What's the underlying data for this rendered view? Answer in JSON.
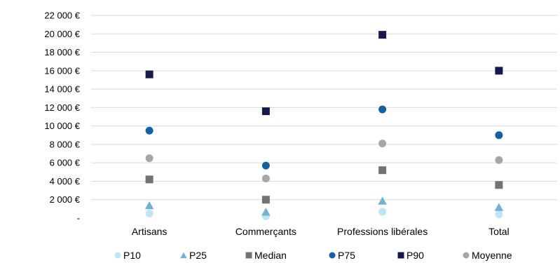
{
  "chart_data": {
    "type": "scatter",
    "categories": [
      "Artisans",
      "Commerçants",
      "Professions libérales",
      "Total"
    ],
    "series": [
      {
        "name": "P10",
        "marker": "circle",
        "color": "#bfe3f7",
        "values": [
          500,
          200,
          700,
          400
        ]
      },
      {
        "name": "P25",
        "marker": "triangle",
        "color": "#6fb3d6",
        "values": [
          1400,
          700,
          1900,
          1200
        ]
      },
      {
        "name": "Median",
        "marker": "square",
        "color": "#737373",
        "values": [
          4200,
          2000,
          5200,
          3600
        ]
      },
      {
        "name": "P75",
        "marker": "circle",
        "color": "#1061a8",
        "values": [
          9500,
          5700,
          11800,
          9000
        ]
      },
      {
        "name": "P90",
        "marker": "square",
        "color": "#141a4e",
        "values": [
          15600,
          11600,
          19900,
          16000
        ]
      },
      {
        "name": "Moyenne",
        "marker": "circle",
        "color": "#a6a6a6",
        "values": [
          6500,
          4300,
          8100,
          6300
        ]
      }
    ],
    "ylim": [
      0,
      22000
    ],
    "yticks": [
      0,
      2000,
      4000,
      6000,
      8000,
      10000,
      12000,
      14000,
      16000,
      18000,
      20000,
      22000
    ],
    "ytick_labels": [
      "-",
      "2 000 €",
      "4 000 €",
      "6 000 €",
      "8 000 €",
      "10 000 €",
      "12 000 €",
      "14 000 €",
      "16 000 €",
      "18 000 €",
      "20 000 €",
      "22 000 €"
    ],
    "grid": true,
    "legend_position": "bottom"
  }
}
